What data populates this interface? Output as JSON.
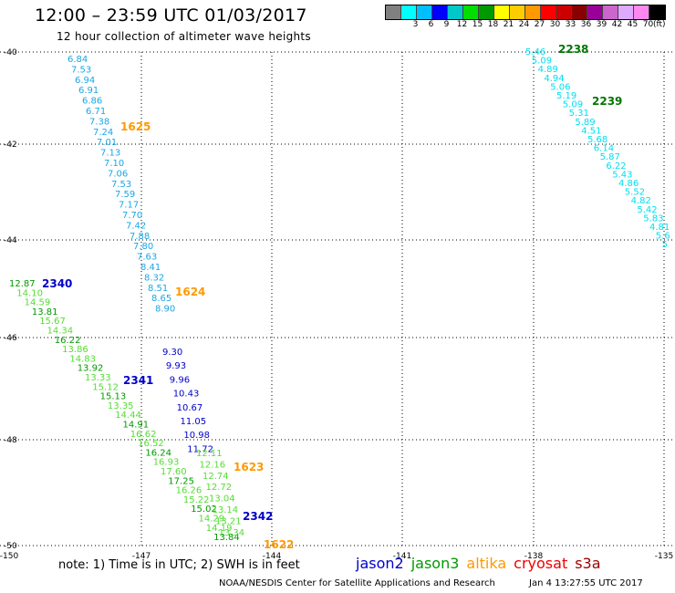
{
  "header": {
    "title": "12:00 – 23:59 UTC 01/03/2017",
    "subtitle": "12 hour collection of altimeter wave heights"
  },
  "colorbar": {
    "colors": [
      "#808080",
      "#00ffff",
      "#00bfff",
      "#0000ff",
      "#00c8c8",
      "#00dd00",
      "#009900",
      "#ffff00",
      "#ffcc00",
      "#ff9900",
      "#ff0000",
      "#cc0000",
      "#880000",
      "#990099",
      "#cc66cc",
      "#ddaaff",
      "#ff88ee",
      "#000000"
    ],
    "labels": [
      "",
      "3",
      "6",
      "9",
      "12",
      "15",
      "18",
      "21",
      "24",
      "27",
      "30",
      "33",
      "36",
      "39",
      "42",
      "45",
      "70"
    ],
    "unit": "(ft)"
  },
  "axes": {
    "x_ticks": [
      "-150",
      "-147",
      "-144",
      "-141",
      "-138",
      "-135"
    ],
    "y_ticks": [
      "-40",
      "-42",
      "-44",
      "-46",
      "-48",
      "-50"
    ]
  },
  "colors": {
    "cyan": "#00c8e8",
    "light_cyan": "#00e0f0",
    "light_blue": "#1aa6e6",
    "blue": "#0000cc",
    "light_green": "#55dd33",
    "green": "#009900",
    "orange": "#ff9900",
    "dark_green": "#007700",
    "dark_blue": "#0000cc"
  },
  "map_data": {
    "track_a": {
      "values": [
        "6.84",
        "7.53",
        "6.94",
        "6.91",
        "6.86",
        "6.71",
        "7.38",
        "7.24",
        "7.01",
        "7.13",
        "7.10",
        "7.06",
        "7.53",
        "7.59",
        "7.17",
        "7.70",
        "7.42",
        "7.88",
        "7.80",
        "7.63",
        "8.41",
        "8.32",
        "8.51",
        "8.65",
        "8.90"
      ],
      "color": "light_blue"
    },
    "track_a2": {
      "values": [
        "9.30",
        "9.93",
        "9.96",
        "10.43",
        "10.67",
        "11.05",
        "10.98",
        "11.72"
      ],
      "color": "blue"
    },
    "track_b": {
      "values": [
        "12.87",
        "14.10",
        "14.59",
        "13.81",
        "15.67",
        "14.34",
        "16.22",
        "13.86",
        "14.83",
        "13.92",
        "13.33",
        "15.12",
        "15.13",
        "13.35",
        "14.44",
        "14.91",
        "16.62",
        "16.52",
        "16.24",
        "16.93",
        "17.60",
        "17.25",
        "16.26",
        "15.22",
        "15.02",
        "14.29",
        "14.19",
        "13.84"
      ],
      "color": "mixed_green"
    },
    "track_b_light": {
      "values": [
        "12.11",
        "12.16",
        "12.74",
        "12.72",
        "13.04",
        "13.14",
        "13.21",
        "13.34"
      ],
      "color": "light_green"
    },
    "track_c": {
      "values": [
        "5.46",
        "5.09",
        "4.89",
        "4.94",
        "5.06",
        "5.19",
        "5.09",
        "5.31",
        "5.89",
        "4.51",
        "5.68",
        "6.14",
        "5.87",
        "6.22",
        "5.43",
        "4.86",
        "5.52",
        "4.82",
        "5.42",
        "5.83",
        "4.81",
        "5.6",
        "5"
      ],
      "color": "cyan"
    },
    "time_labels": [
      {
        "text": "1625",
        "color": "orange"
      },
      {
        "text": "1624",
        "color": "orange"
      },
      {
        "text": "1623",
        "color": "orange"
      },
      {
        "text": "1622",
        "color": "orange"
      },
      {
        "text": "2340",
        "color": "dark_blue"
      },
      {
        "text": "2341",
        "color": "dark_blue"
      },
      {
        "text": "2342",
        "color": "dark_blue"
      },
      {
        "text": "2238",
        "color": "dark_green"
      },
      {
        "text": "2239",
        "color": "dark_green"
      }
    ]
  },
  "footer": {
    "note": "note:  1)  Time is in UTC;  2)  SWH is in feet",
    "legend": [
      {
        "name": "jason2",
        "color": "#0000cc"
      },
      {
        "name": "jason3",
        "color": "#009900"
      },
      {
        "name": "altika",
        "color": "#ff9900"
      },
      {
        "name": "cryosat",
        "color": "#ee0000"
      },
      {
        "name": "s3a",
        "color": "#990000"
      }
    ],
    "credit": "NOAA/NESDIS Center for Satellite Applications and Research",
    "timestamp": "Jan  4 13:27:55 UTC 2017"
  }
}
